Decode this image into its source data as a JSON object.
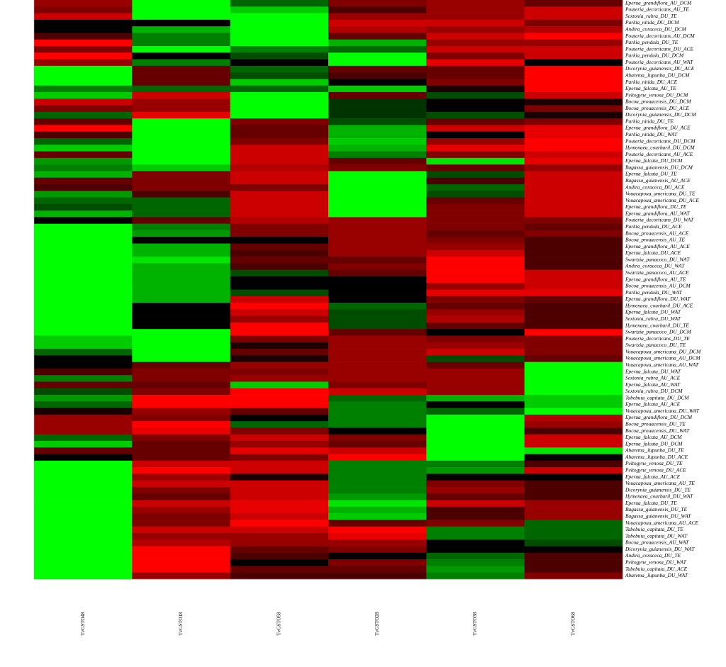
{
  "chart_data": {
    "type": "heatmap",
    "colors": [
      "#00ff00",
      "#000000",
      "#ff0000"
    ],
    "zlim": [
      -1,
      1
    ],
    "categories": [
      "Eperua_grandiflora_AU_DCM",
      "Pouteria_decorticans_AU_TE",
      "Sextonia_rubra_DU_TE",
      "Parkia_nitida_DU_DCM",
      "Andira_coraceca_DU_DCM",
      "Pouteria_decorticans_AU_DCM",
      "Parkia_pendula_DU_TE",
      "Pouteria_decorticans_DU_ACE",
      "Parkia_pendula_DU_DCM",
      "Pouteria_decorticans_AU_WAT",
      "Dicorynia_guianensis_DU_ACE",
      "Abarema_Jupunba_DU_DCM",
      "Parkia_nitida_DU_ACE",
      "Eperua_falcata_AU_TE",
      "Peltogyne_venosa_DU_DCM",
      "Bocoa_prouacensis_DU_DCM",
      "Bocoa_prouacensis_DU_ACE",
      "Dicorynia_guianensis_DU_DCM",
      "Parkia_nitida_DU_TE",
      "Eperua_grandiflora_DU_ACE",
      "Parkia_nitida_DU_WAT",
      "Pouteria_decorticans_DU_DCM",
      "Hymenaea_courbaril_DU_DCM",
      "Pouteria_decorticans_AU_ACE",
      "Eperua_falcata_DU_DCM",
      "Bagassa_guianensis_DU_DCM",
      "Eperua_falcata_DU_TE",
      "Bagassa_guianensis_AU_ACE",
      "Andira_coraceca_DU_ACE",
      "Vouacapoua_americana_DU_TE",
      "Vouacapoua_americana_DU_ACE",
      "Eperua_grandiflora_DU_TE",
      "Eperua_grandiflora_AU_WAT",
      "Pouteria_decorticans_DU_WAT",
      "Parkia_pendula_DU_ACE",
      "Bocoa_prouacensis_AU_ACE",
      "Bocoa_prouacensis_AU_TE",
      "Eperua_grandiflora_AU_ACE",
      "Eperua_falcata_DU_ACE",
      "Swartzia_panacoco_DU_WAT",
      "Andira_coraceca_DU_WAT",
      "Swartzia_panacoco_AU_ACE",
      "Eperua_grandiflora_AU_TE",
      "Bocoa_prouacensis_AU_DCM",
      "Parkia_pendula_DU_WAT",
      "Eperua_grandiflora_DU_WAT",
      "Hymenaea_courbaril_DU_ACE",
      "Eperua_falcata_DU_WAT",
      "Sextonia_rubra_DU_WAT",
      "Hymenaea_courbaril_DU_TE",
      "Swartzia_panacoco_DU_DCM",
      "Pouteria_decorticans_DU_TE",
      "Swartzia_panacoco_DU_TE",
      "Vouacapoua_americana_DU_DCM",
      "Vouacapoua_americana_AU_DCM",
      "Vouacapoua_americana_AU_WAT",
      "Eperua_falcata_DU_WAT",
      "Sextonia_rubra_AU_ACE",
      "Eperua_falcata_AU_WAT",
      "Sextonia_rubra_DU_DCM",
      "Tabebuia_capitata_DU_DCM",
      "Eperua_falcata_AU_ACE",
      "Vouacapoua_americana_DU_WAT",
      "Eperua_grandiflora_DU_DCM",
      "Bocoa_prouacensis_DU_TE",
      "Bocoa_prouacensis_DU_WAT",
      "Eperua_falcata_AU_DCM",
      "Eperua_falcata_DU_DCM",
      "Abarema_Jupunba_DU_TE",
      "Abarema_Jupunba_DU_ACE",
      "Peltogyne_venosa_DU_TE",
      "Peltogyne_venosa_DU_ACE",
      "Eperua_falcata_AU_ACE",
      "Vouacapoua_americana_AU_TE",
      "Dicorynia_guianensis_DU_TE",
      "Hymenaea_courbaril_DU_WAT",
      "Eperua_falcata_DU_TE",
      "Bagassa_guianensis_DU_TE",
      "Bagassa_guianensis_DU_WAT",
      "Vouacapoua_americana_AU_ACE",
      "Tabebuia_capitata_DU_TE",
      "Tabebuia_capitata_DU_WAT",
      "Bocoa_prouacensis_AU_WAT",
      "Dicorynia_guianensis_DU_WAT",
      "Andira_coraceca_DU_TE",
      "Peltogyne_venosa_DU_WAT",
      "Tabebuia_capitata_DU_ACE",
      "Abarema_Jupunba_DU_WAT"
    ],
    "series": [
      {
        "name": "TvGSTO48",
        "values": [
          0.6,
          0.5,
          0.8,
          0,
          0,
          0.3,
          1,
          0.5,
          1,
          0.6,
          -1,
          -1,
          -1,
          -0.5,
          -0.8,
          0.8,
          0.5,
          -0.4,
          0.4,
          1,
          0.3,
          -0.4,
          -0.8,
          0.4,
          -0.6,
          -0.5,
          -0.7,
          0.4,
          0.3,
          -0.6,
          -0.4,
          -0.3,
          -0.7,
          0,
          -1,
          -1,
          -1,
          -1,
          -1,
          -1,
          -1,
          -1,
          -1,
          -1,
          -1,
          -1,
          -1,
          -1,
          -1,
          -1,
          -1,
          -0.8,
          -0.8,
          -0.4,
          0,
          0,
          0.3,
          -0.5,
          0.4,
          -0.3,
          -0.6,
          -0.4,
          0.1,
          0.6,
          0.6,
          0.6,
          -0.4,
          -0.8,
          0.4,
          0,
          -1,
          -1,
          -1,
          -1,
          -1,
          -1,
          -1,
          -1,
          -1,
          -1,
          -1,
          -1,
          -1,
          -1,
          -1,
          -1,
          -1,
          -1
        ]
      },
      {
        "name": "TvGSTO18",
        "values": [
          -1,
          -1,
          -1,
          0,
          -0.7,
          -0.5,
          -0.5,
          -1,
          0,
          -0.5,
          0.4,
          0.4,
          0.4,
          -0.4,
          0.8,
          0.6,
          0.6,
          0.9,
          -1,
          -1,
          -1,
          -1,
          -1,
          -1,
          -1,
          -0.8,
          0.5,
          0.5,
          0.5,
          0.3,
          -0.4,
          -0.4,
          -0.4,
          0.4,
          -0.5,
          -0.6,
          0,
          -0.7,
          -0.7,
          -0.9,
          -0.7,
          -0.7,
          -0.7,
          -0.7,
          -0.7,
          -0.7,
          0,
          0,
          0,
          0,
          -1,
          -1,
          -1,
          -1,
          -1,
          0.4,
          0.5,
          0.5,
          0.4,
          0.5,
          1,
          1,
          0.6,
          0.5,
          1,
          0.9,
          0.5,
          0.4,
          0.4,
          0.4,
          0.8,
          1,
          0.6,
          0.8,
          0.5,
          0.4,
          0.8,
          0.6,
          0.5,
          0.5,
          0.8,
          0.6,
          0.7,
          1,
          1,
          1,
          1,
          0.6
        ]
      },
      {
        "name": "TvGSTO58",
        "values": [
          -0.4,
          -0.8,
          -1,
          -1,
          -1,
          -1,
          -1,
          -0.5,
          -0.3,
          0,
          -0.4,
          -0.3,
          -0.8,
          -0.4,
          -1,
          -1,
          -1,
          -1,
          0.5,
          0.4,
          0.4,
          0.5,
          0.8,
          0.8,
          0.8,
          0.7,
          0.8,
          0.8,
          0.5,
          0.8,
          0.8,
          0.8,
          0.8,
          0.7,
          0.5,
          0.5,
          0,
          0.4,
          0.3,
          0.4,
          0.3,
          -0.3,
          0,
          0,
          -0.3,
          0.8,
          1,
          0.8,
          0.6,
          1,
          1,
          0.5,
          0.1,
          0.4,
          0.1,
          0.6,
          0.5,
          0.6,
          -0.8,
          1,
          1,
          1,
          0.4,
          0,
          -0.4,
          0.5,
          0.8,
          0.6,
          0.9,
          0.5,
          0.8,
          0.8,
          0.1,
          0.8,
          0.8,
          0.8,
          0.9,
          0.9,
          0.8,
          1,
          0.8,
          0.6,
          0.6,
          0.4,
          0.3,
          0,
          0.4,
          0.3
        ]
      },
      {
        "name": "TvGSTO28",
        "values": [
          0.5,
          0.3,
          0.6,
          0.8,
          0.7,
          0.4,
          -0.7,
          -0.4,
          -1,
          -1,
          0.4,
          0.3,
          0,
          -0.8,
          0.4,
          -0.2,
          -0.2,
          -0.2,
          -0.3,
          -0.7,
          -0.7,
          -0.8,
          -0.7,
          -0.5,
          0.4,
          0.5,
          -1,
          -1,
          -1,
          -1,
          -1,
          -1,
          -1,
          0.6,
          0.6,
          0.6,
          0.6,
          0.6,
          0.6,
          0.4,
          0.5,
          0.4,
          0,
          0,
          0,
          0,
          -0.4,
          -0.3,
          -0.3,
          -0.3,
          0.4,
          0.6,
          0.6,
          0.6,
          0.6,
          0.6,
          0.6,
          0.6,
          0.5,
          0.8,
          -0.4,
          -0.5,
          -0.5,
          -0.5,
          -0.5,
          0,
          0.5,
          0.4,
          0.8,
          1,
          -0.5,
          -0.5,
          -0.5,
          -0.5,
          -0.5,
          -0.6,
          -0.9,
          -0.7,
          -0.8,
          0.4,
          1,
          0.9,
          0.6,
          0.5,
          0,
          0.5,
          0.4,
          0.3
        ]
      },
      {
        "name": "TvGSTO38",
        "values": [
          0.6,
          0.6,
          0.6,
          0.8,
          0.6,
          0.8,
          0.6,
          0.8,
          0.5,
          0.9,
          0.4,
          0.4,
          0.5,
          0.1,
          -0.3,
          0,
          0,
          -0.3,
          0.4,
          0.8,
          0,
          0.6,
          0.9,
          0.5,
          -0.9,
          0.4,
          -0.3,
          0.3,
          -0.4,
          -0.3,
          0.4,
          0.5,
          0.5,
          0.5,
          0.5,
          0.4,
          0.5,
          0.6,
          0.8,
          1,
          1,
          1,
          1,
          0.6,
          0.9,
          0.5,
          0.4,
          0.6,
          0.7,
          0.4,
          0,
          0.5,
          0.6,
          0.8,
          -0.3,
          0.4,
          0.6,
          0.6,
          0.6,
          0.6,
          -0.7,
          0,
          -0.4,
          -1,
          -1,
          -1,
          -1,
          -1,
          -1,
          -1,
          -0.5,
          -0.6,
          0,
          0.5,
          0.6,
          0.4,
          0.8,
          0.3,
          0.3,
          0.5,
          -0.5,
          -0.5,
          0,
          0,
          -0.4,
          -0.5,
          -0.6,
          -0.5
        ]
      },
      {
        "name": "TvGSTO68",
        "values": [
          0.4,
          0.8,
          0.8,
          0.5,
          0.7,
          1,
          0.6,
          0.8,
          0.8,
          0,
          1,
          1,
          1,
          1,
          0.8,
          0.1,
          0.5,
          0.1,
          0.5,
          0.9,
          0.9,
          1,
          1,
          0.8,
          0.9,
          0.6,
          0.8,
          0.8,
          0.8,
          0.8,
          0.8,
          0.8,
          0.8,
          0.5,
          0.4,
          0.5,
          0.3,
          0.3,
          0.3,
          0.3,
          0.3,
          0.8,
          0.8,
          0.8,
          0.9,
          0.4,
          0.3,
          0.3,
          0.3,
          0.3,
          1,
          0.5,
          0.5,
          0.5,
          0.4,
          -1,
          -1,
          -1,
          -1,
          -1,
          -0.8,
          -0.8,
          -1,
          0.7,
          0.6,
          0.3,
          0.8,
          0.8,
          -0.9,
          0,
          0.3,
          0.8,
          0,
          0.3,
          0.3,
          0.3,
          0.6,
          0.6,
          0.6,
          -0.4,
          -0.4,
          -0.4,
          -0.3,
          0,
          0.3,
          0.3,
          0.3,
          0.5
        ]
      }
    ]
  }
}
